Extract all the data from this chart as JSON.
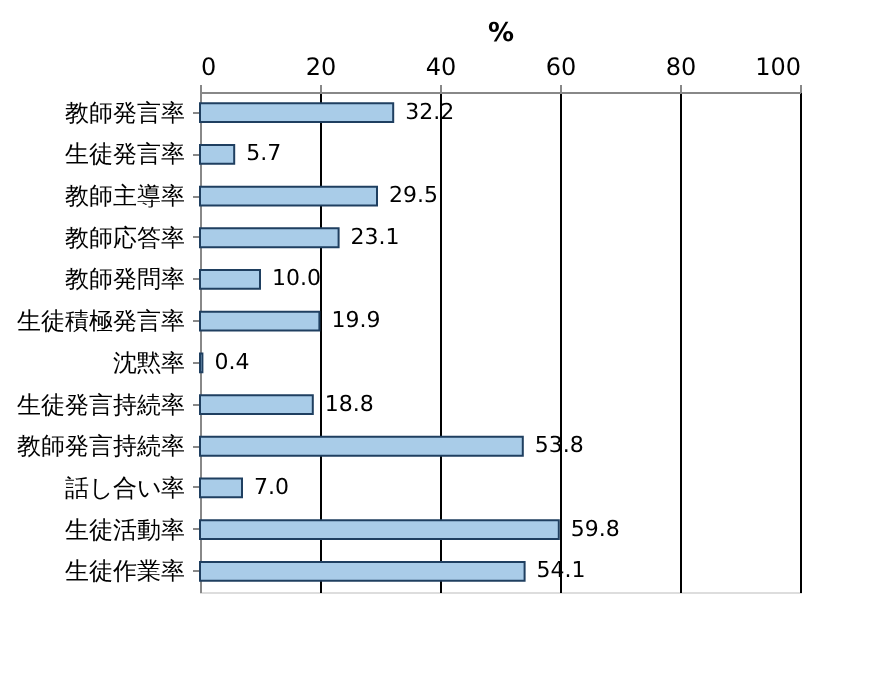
{
  "chart_data": {
    "type": "bar",
    "orientation": "horizontal",
    "xlabel": "%",
    "categories": [
      "教師発言率",
      "生徒発言率",
      "教師主導率",
      "教師応答率",
      "教師発問率",
      "生徒積極発言率",
      "沈黙率",
      "生徒発言持続率",
      "教師発言持続率",
      "話し合い率",
      "生徒活動率",
      "生徒作業率"
    ],
    "values": [
      32.2,
      5.7,
      29.5,
      23.1,
      10.0,
      19.9,
      0.4,
      18.8,
      53.8,
      7.0,
      59.8,
      54.1
    ],
    "value_labels": [
      "32.2",
      "5.7",
      "29.5",
      "23.1",
      "10.0",
      "19.9",
      "0.4",
      "18.8",
      "53.8",
      "7.0",
      "59.8",
      "54.1"
    ],
    "color": "#a9cce8",
    "xlim": [
      0,
      100
    ],
    "xticks": [
      0,
      20,
      40,
      60,
      80,
      100
    ],
    "grid": "x"
  }
}
